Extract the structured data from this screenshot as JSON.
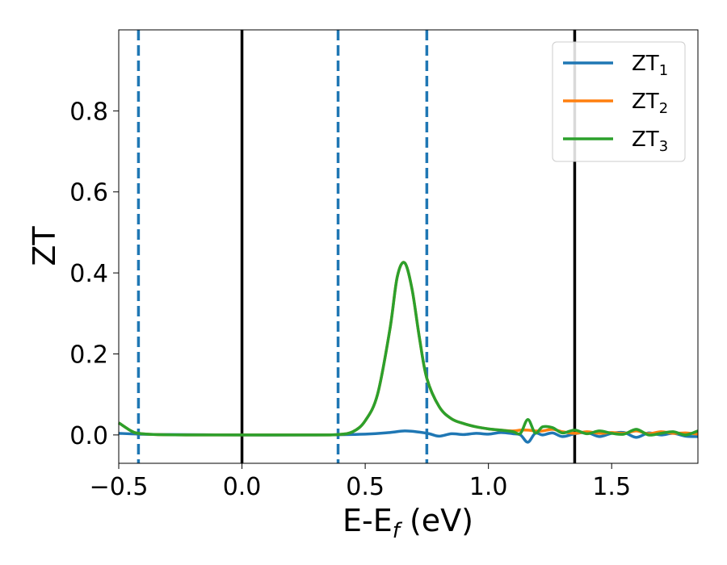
{
  "chart_data": {
    "type": "line",
    "title": "",
    "xlabel": {
      "main": "E-E",
      "sub": "f",
      "suffix": " (eV)"
    },
    "ylabel": "ZT",
    "xlim": [
      -0.5,
      1.85
    ],
    "ylim": [
      -0.07,
      1.0
    ],
    "xticks": [
      -0.5,
      0.0,
      0.5,
      1.0,
      1.5
    ],
    "xtick_labels": [
      "−0.5",
      "0.0",
      "0.5",
      "1.0",
      "1.5"
    ],
    "yticks": [
      0.0,
      0.2,
      0.4,
      0.6,
      0.8
    ],
    "ytick_labels": [
      "0.0",
      "0.2",
      "0.4",
      "0.6",
      "0.8"
    ],
    "grid": false,
    "legend_position": "top-right",
    "vlines_solid": [
      0.0,
      1.35
    ],
    "vlines_dashed": [
      -0.42,
      0.39,
      0.75
    ],
    "series": [
      {
        "name": "ZT",
        "subscript": "1",
        "color": "#1f77b4",
        "x": [
          -0.5,
          -0.42,
          -0.3,
          0.0,
          0.3,
          0.5,
          0.6,
          0.66,
          0.72,
          0.76,
          0.8,
          0.85,
          0.9,
          0.95,
          1.0,
          1.05,
          1.1,
          1.13,
          1.16,
          1.19,
          1.22,
          1.26,
          1.3,
          1.35,
          1.4,
          1.45,
          1.5,
          1.55,
          1.6,
          1.65,
          1.7,
          1.75,
          1.8,
          1.85
        ],
        "y": [
          0.004,
          0.002,
          0.001,
          0.0,
          0.0,
          0.002,
          0.006,
          0.01,
          0.007,
          0.003,
          -0.003,
          0.003,
          0.001,
          0.004,
          0.002,
          0.006,
          0.003,
          0.0,
          -0.018,
          0.004,
          0.0,
          0.005,
          -0.004,
          0.003,
          0.006,
          -0.004,
          0.004,
          0.006,
          -0.006,
          0.005,
          0.0,
          0.004,
          -0.003,
          -0.004
        ]
      },
      {
        "name": "ZT",
        "subscript": "2",
        "color": "#ff7f0e",
        "x": [
          -0.5,
          -0.45,
          -0.42,
          -0.35,
          -0.2,
          0.0,
          0.3,
          0.39,
          0.45,
          0.5,
          0.55,
          0.6,
          0.63,
          0.66,
          0.69,
          0.72,
          0.75,
          0.8,
          0.85,
          0.9,
          0.95,
          1.0,
          1.05,
          1.1,
          1.13,
          1.16,
          1.19,
          1.22,
          1.26,
          1.3,
          1.35,
          1.4,
          1.45,
          1.5,
          1.55,
          1.6,
          1.65,
          1.7,
          1.75,
          1.8,
          1.85
        ],
        "y": [
          0.03,
          0.01,
          0.004,
          0.001,
          0.0,
          0.0,
          0.0,
          0.001,
          0.008,
          0.035,
          0.1,
          0.26,
          0.39,
          0.425,
          0.36,
          0.24,
          0.14,
          0.07,
          0.04,
          0.028,
          0.02,
          0.015,
          0.012,
          0.01,
          0.012,
          0.012,
          0.01,
          0.01,
          0.014,
          0.008,
          0.004,
          0.008,
          0.004,
          0.006,
          0.004,
          0.01,
          0.003,
          0.008,
          0.004,
          0.005,
          0.002
        ]
      },
      {
        "name": "ZT",
        "subscript": "3",
        "color": "#2ca02c",
        "x": [
          -0.5,
          -0.45,
          -0.42,
          -0.35,
          -0.2,
          0.0,
          0.3,
          0.39,
          0.45,
          0.5,
          0.55,
          0.6,
          0.63,
          0.66,
          0.69,
          0.72,
          0.75,
          0.8,
          0.85,
          0.9,
          0.95,
          1.0,
          1.05,
          1.1,
          1.13,
          1.16,
          1.19,
          1.22,
          1.26,
          1.3,
          1.35,
          1.4,
          1.45,
          1.5,
          1.55,
          1.6,
          1.65,
          1.7,
          1.75,
          1.8,
          1.85
        ],
        "y": [
          0.03,
          0.01,
          0.004,
          0.001,
          0.0,
          0.0,
          0.0,
          0.001,
          0.008,
          0.035,
          0.1,
          0.26,
          0.39,
          0.425,
          0.36,
          0.24,
          0.14,
          0.07,
          0.04,
          0.028,
          0.02,
          0.015,
          0.012,
          0.008,
          0.004,
          0.038,
          0.005,
          0.02,
          0.018,
          0.005,
          0.012,
          0.003,
          0.01,
          0.004,
          0.002,
          0.014,
          0.0,
          0.004,
          0.008,
          0.0,
          0.01
        ]
      }
    ]
  }
}
